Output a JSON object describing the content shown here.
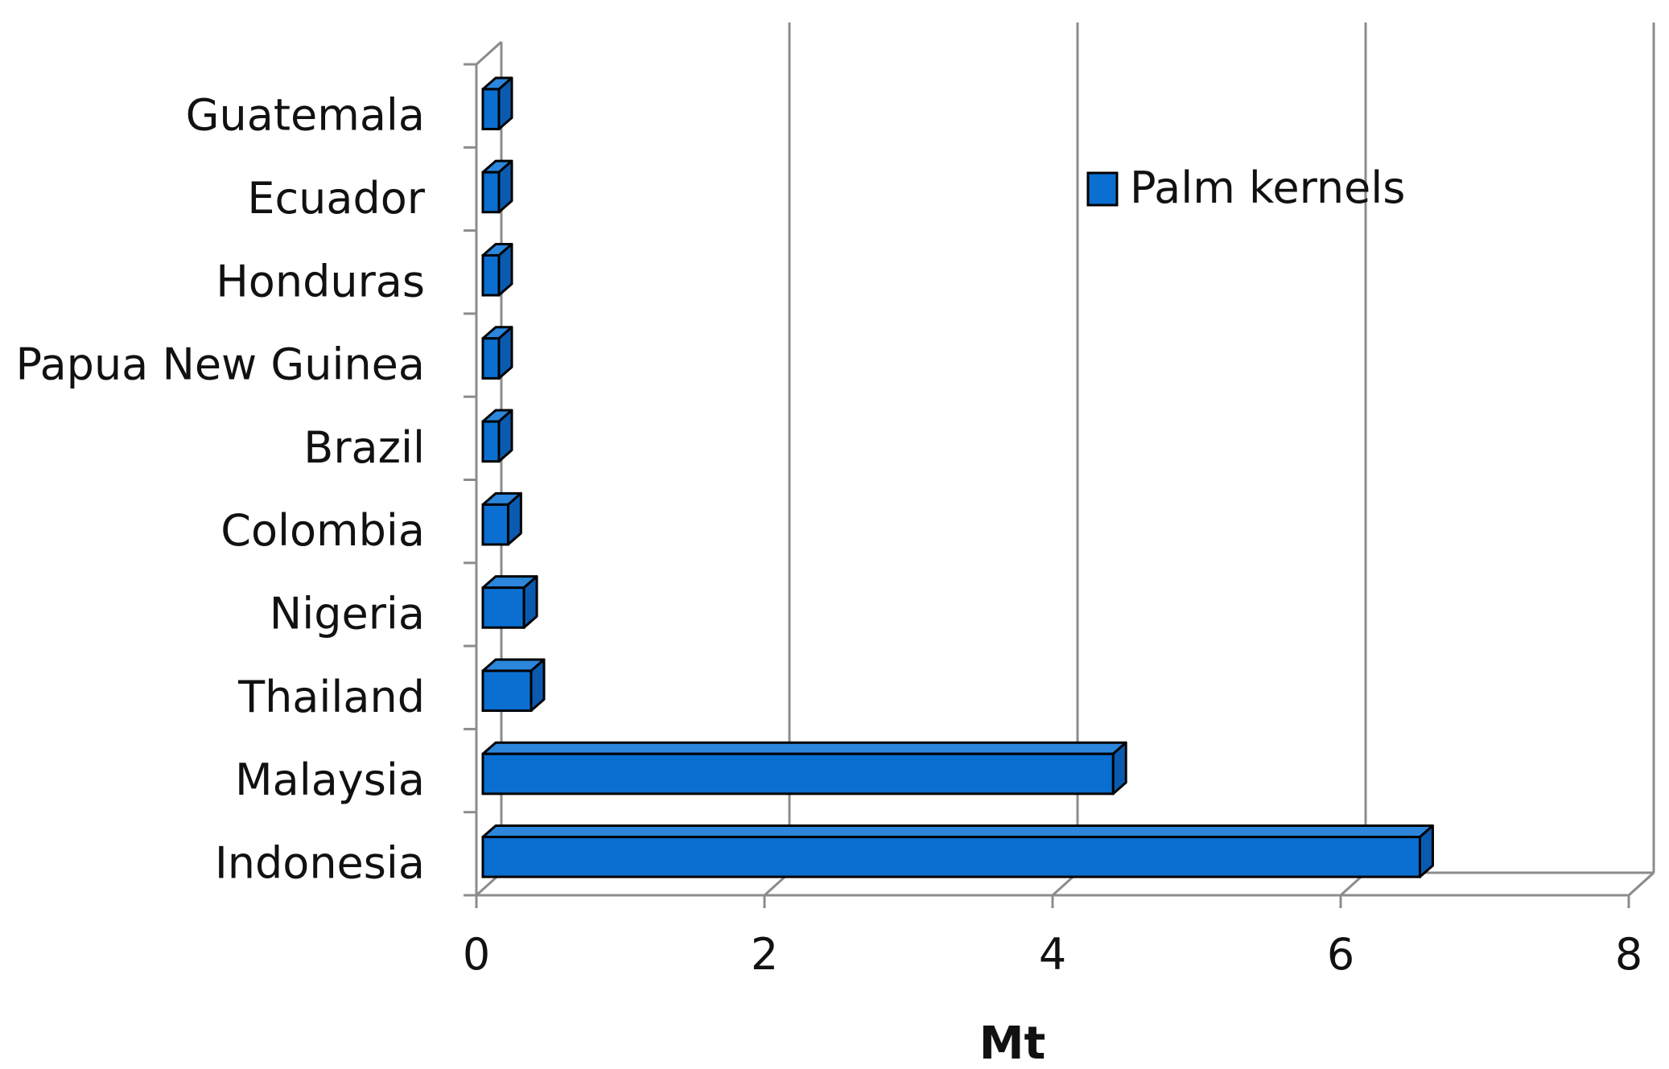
{
  "chart_data": {
    "type": "bar",
    "orientation": "horizontal",
    "style": "3d",
    "categories": [
      "Indonesia",
      "Malaysia",
      "Thailand",
      "Nigeria",
      "Colombia",
      "Brazil",
      "Papua New Guinea",
      "Honduras",
      "Ecuador",
      "Guatemala"
    ],
    "series": [
      {
        "name": "Palm kernels",
        "color": "#0a6fd0",
        "values": [
          6.55,
          4.42,
          0.38,
          0.33,
          0.22,
          0.13,
          0.1,
          0.09,
          0.08,
          0.07
        ]
      }
    ],
    "xlabel": "Mt",
    "ylabel": "",
    "xlim": [
      0,
      8
    ],
    "xticks": [
      0,
      2,
      4,
      6,
      8
    ],
    "xtick_labels": [
      "0",
      "2",
      "4",
      "6",
      "8"
    ],
    "grid": "vertical",
    "legend": {
      "position": "top-right",
      "label": "Palm kernels"
    }
  }
}
